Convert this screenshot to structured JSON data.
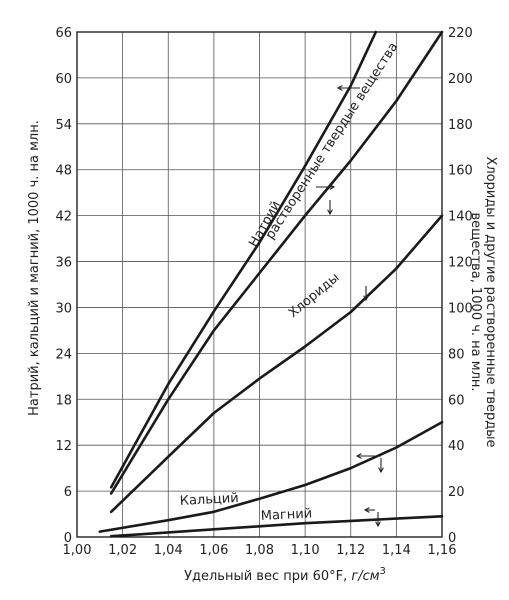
{
  "chart_data": {
    "type": "line",
    "xlabel_main": "Удельный вес при 60°F, ",
    "xlabel_unit": "г/см",
    "xlabel_sup": "3",
    "ylabel_left": "Натрий, кальций и магний, 1000 ч. на млн.",
    "ylabel_right_line1": "Хлориды и другие растворенные твердые",
    "ylabel_right_line2": "вещества, 1000 ч. на млн.",
    "xlim": [
      1.0,
      1.16
    ],
    "ylim_left": [
      0,
      66
    ],
    "ylim_right": [
      0,
      220
    ],
    "x_ticks": [
      "1,00",
      "1,02",
      "1,04",
      "1,06",
      "1,08",
      "1,10",
      "1,12",
      "1,14",
      "1,16"
    ],
    "y_left_ticks": [
      "0",
      "6",
      "12",
      "18",
      "24",
      "30",
      "36",
      "42",
      "48",
      "54",
      "60",
      "66"
    ],
    "y_right_ticks": [
      "0",
      "20",
      "40",
      "60",
      "80",
      "100",
      "120",
      "140",
      "160",
      "180",
      "200",
      "220"
    ],
    "grid": true,
    "series": [
      {
        "name": "Натрий",
        "axis": "left",
        "x": [
          1.015,
          1.04,
          1.06,
          1.08,
          1.1,
          1.12,
          1.131
        ],
        "y": [
          6.5,
          20,
          29.5,
          38.5,
          48.5,
          59,
          66
        ]
      },
      {
        "name": "Растворенные твердые вещества",
        "axis": "right",
        "x": [
          1.015,
          1.04,
          1.06,
          1.08,
          1.1,
          1.12,
          1.14,
          1.16
        ],
        "y": [
          19,
          60,
          90,
          115,
          140,
          164,
          190,
          220
        ]
      },
      {
        "name": "Хлориды",
        "axis": "right",
        "x": [
          1.015,
          1.04,
          1.06,
          1.08,
          1.1,
          1.12,
          1.14,
          1.16
        ],
        "y": [
          11,
          35,
          54,
          69,
          83,
          98,
          117,
          140
        ]
      },
      {
        "name": "Кальций",
        "axis": "left",
        "x": [
          1.01,
          1.04,
          1.06,
          1.08,
          1.1,
          1.12,
          1.14,
          1.16
        ],
        "y": [
          0.7,
          2.2,
          3.3,
          5.0,
          6.8,
          9.0,
          11.7,
          15.0
        ]
      },
      {
        "name": "Магний",
        "axis": "left",
        "x": [
          1.015,
          1.04,
          1.06,
          1.08,
          1.1,
          1.12,
          1.14,
          1.16
        ],
        "y": [
          0.1,
          0.6,
          1.0,
          1.4,
          1.8,
          2.1,
          2.4,
          2.7
        ]
      }
    ],
    "labels": {
      "sodium": "Натрий",
      "solids": "растворенные твердые вещества",
      "chlorides": "Хлориды",
      "calcium": "Кальций",
      "magnesium": "Магний"
    }
  }
}
